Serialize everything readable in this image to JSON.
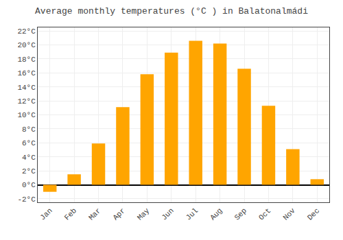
{
  "chart_data": {
    "type": "bar",
    "title": "Average monthly temperatures (°C ) in Balatonalmádi",
    "categories": [
      "Jan",
      "Feb",
      "Mar",
      "Apr",
      "May",
      "Jun",
      "Jul",
      "Aug",
      "Sep",
      "Oct",
      "Nov",
      "Dec"
    ],
    "values": [
      -1.0,
      1.5,
      5.9,
      11.1,
      15.8,
      18.9,
      20.6,
      20.2,
      16.6,
      11.3,
      5.1,
      0.8
    ],
    "color": "#FFA500",
    "ylim": [
      -2.5,
      22.5
    ],
    "yticks": [
      {
        "value": -2,
        "label": "-2°C"
      },
      {
        "value": 0,
        "label": "0°C"
      },
      {
        "value": 2,
        "label": "2°C"
      },
      {
        "value": 4,
        "label": "4°C"
      },
      {
        "value": 6,
        "label": "6°C"
      },
      {
        "value": 8,
        "label": "8°C"
      },
      {
        "value": 10,
        "label": "10°C"
      },
      {
        "value": 12,
        "label": "12°C"
      },
      {
        "value": 14,
        "label": "14°C"
      },
      {
        "value": 16,
        "label": "16°C"
      },
      {
        "value": 18,
        "label": "18°C"
      },
      {
        "value": 20,
        "label": "20°C"
      },
      {
        "value": 22,
        "label": "22°C"
      }
    ],
    "grid": true
  }
}
